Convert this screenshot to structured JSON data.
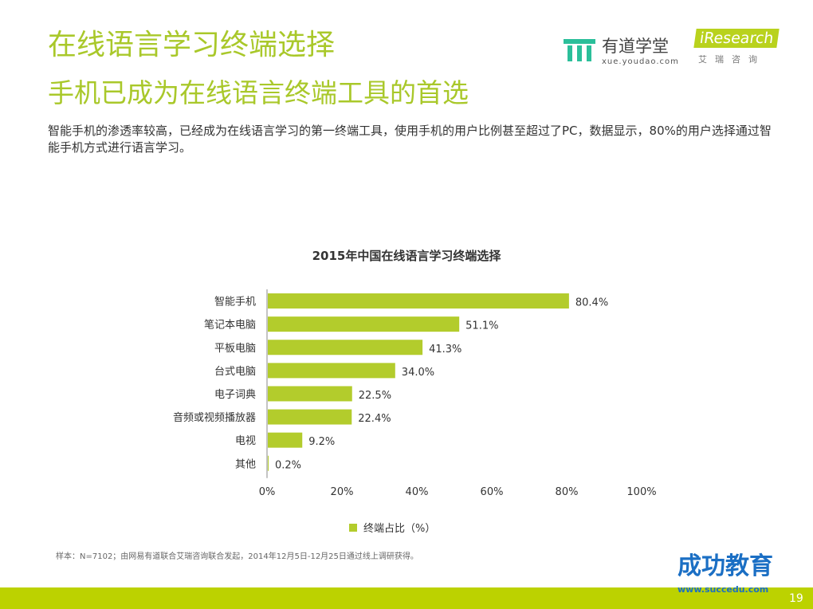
{
  "header": {
    "title": "在线语言学习终端选择",
    "subtitle": "手机已成为在线语言终端工具的首选",
    "description": "智能手机的渗透率较高，已经成为在线语言学习的第一终端工具，使用手机的用户比例甚至超过了PC，数据显示，80%的用户选择通过智能手机方式进行语言学习。"
  },
  "logos": {
    "youdao_name": "有道学堂",
    "youdao_url": "xue.youdao.com",
    "iresearch": "iResearch",
    "iresearch_cn": "艾瑞咨询"
  },
  "note": "样本：N=7102；由网易有道联合艾瑞咨询联合发起，2014年12月5日-12月25日通过线上调研获得。",
  "watermark": {
    "name": "成功教育",
    "url": "www.succedu.com"
  },
  "page_number": "19",
  "colors": {
    "accent": "#a9c82a",
    "bar": "#b3cc2c",
    "footer": "#bcd200"
  },
  "chart_data": {
    "type": "bar",
    "orientation": "horizontal",
    "title": "2015年中国在线语言学习终端选择",
    "categories": [
      "智能手机",
      "笔记本电脑",
      "平板电脑",
      "台式电脑",
      "电子词典",
      "音频或视频播放器",
      "电视",
      "其他"
    ],
    "series": [
      {
        "name": "终端占比（%）",
        "values": [
          80.4,
          51.1,
          41.3,
          34.0,
          22.5,
          22.4,
          9.2,
          0.2
        ]
      }
    ],
    "data_labels": [
      "80.4%",
      "51.1%",
      "41.3%",
      "34.0%",
      "22.5%",
      "22.4%",
      "9.2%",
      "0.2%"
    ],
    "xlim": [
      0,
      100
    ],
    "xticks": [
      "0%",
      "20%",
      "40%",
      "60%",
      "80%",
      "100%"
    ],
    "grid": false,
    "legend": "bottom"
  }
}
